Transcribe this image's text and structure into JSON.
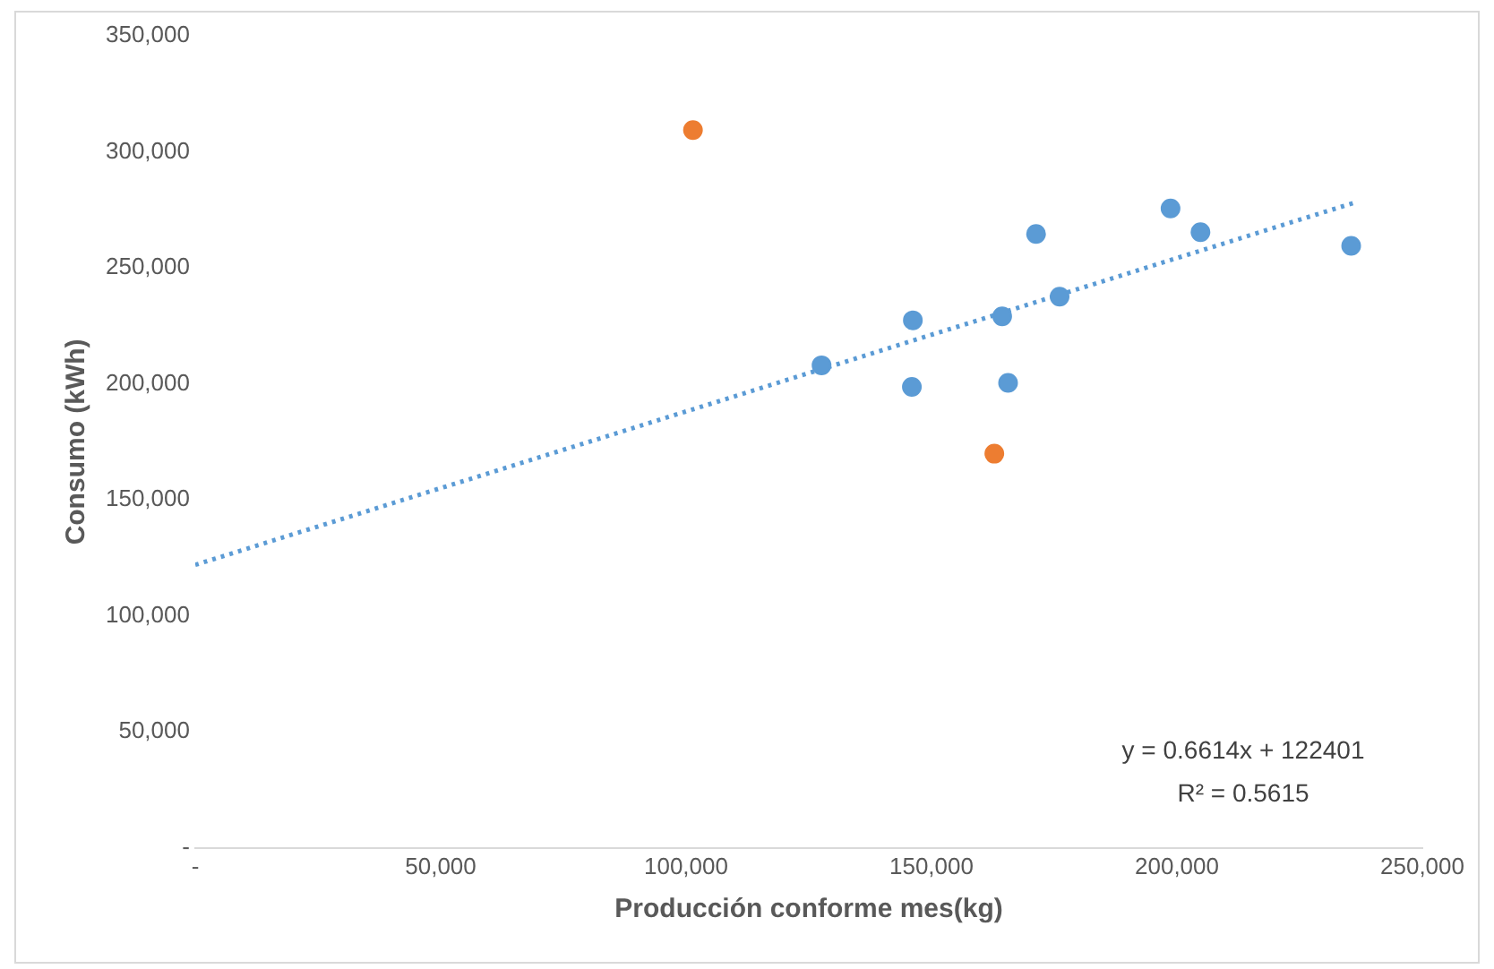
{
  "chart_data": {
    "type": "scatter",
    "xlabel": "Producción conforme mes(kg)",
    "ylabel": "Consumo (kWh)",
    "xlim": [
      0,
      250000
    ],
    "xticks": [
      {
        "value": 0,
        "label": "-"
      },
      {
        "value": 50000,
        "label": "50,000"
      },
      {
        "value": 100000,
        "label": "100,000"
      },
      {
        "value": 150000,
        "label": "150,000"
      },
      {
        "value": 200000,
        "label": "200,000"
      },
      {
        "value": 250000,
        "label": "250,000"
      }
    ],
    "ylim": [
      0,
      350000
    ],
    "yticks": [
      {
        "value": 0,
        "label": "-"
      },
      {
        "value": 50000,
        "label": "50,000"
      },
      {
        "value": 100000,
        "label": "100,000"
      },
      {
        "value": 150000,
        "label": "150,000"
      },
      {
        "value": 200000,
        "label": "200,000"
      },
      {
        "value": 250000,
        "label": "250,000"
      },
      {
        "value": 300000,
        "label": "300,000"
      },
      {
        "value": 350000,
        "label": "350,000"
      }
    ],
    "grid": false,
    "legend": false,
    "marker": "circle",
    "series": [
      {
        "color": "#5b9bd5",
        "x": [
          127600,
          146200,
          146000,
          164400,
          165600,
          171300,
          176100,
          198700,
          204800,
          235500
        ],
        "values": [
          208000,
          227400,
          198700,
          229100,
          200400,
          264600,
          237600,
          275600,
          265400,
          259500
        ]
      },
      {
        "color": "#ed7d31",
        "x": [
          101400,
          162800
        ],
        "values": [
          309400,
          169900
        ]
      },
      {
        "type": "line",
        "color": "#5b9bd5",
        "line_style": "dotted",
        "marker": "none",
        "x": [
          0,
          236000
        ],
        "values": [
          122000,
          278000
        ]
      }
    ],
    "annotations": [
      "y = 0.6614x + 122401",
      "R² = 0.5615"
    ]
  }
}
